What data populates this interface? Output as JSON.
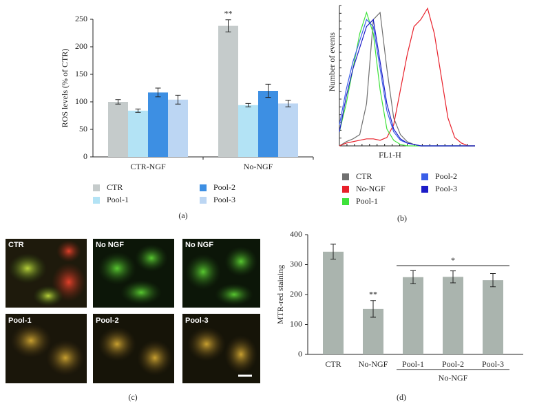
{
  "chart_data": [
    {
      "type": "bar",
      "panel_label": "(a)",
      "ylabel": "ROS levels (% of CTR)",
      "categories": [
        "CTR-NGF",
        "No-NGF"
      ],
      "series": [
        {
          "name": "CTR",
          "color": "#c5cbcb",
          "values": [
            100,
            238
          ],
          "errors": [
            4,
            11
          ]
        },
        {
          "name": "Pool-1",
          "color": "#b3e3f5",
          "values": [
            84,
            94
          ],
          "errors": [
            3,
            3
          ]
        },
        {
          "name": "Pool-2",
          "color": "#3d8fe3",
          "values": [
            117,
            120
          ],
          "errors": [
            8,
            12
          ]
        },
        {
          "name": "Pool-3",
          "color": "#bcd6f3",
          "values": [
            104,
            97
          ],
          "errors": [
            8,
            6
          ]
        }
      ],
      "ylim": [
        0,
        250
      ],
      "yticks": [
        0,
        50,
        100,
        150,
        200,
        250
      ],
      "annotations": [
        "**"
      ]
    },
    {
      "type": "line",
      "panel_label": "(b)",
      "xlabel": "FL1-H",
      "ylabel": "Number of events",
      "x": [
        0,
        1,
        2,
        3,
        4,
        5,
        6,
        7,
        8,
        9,
        10,
        11,
        12,
        13,
        14,
        15,
        16,
        17,
        18,
        19,
        20
      ],
      "series": [
        {
          "name": "CTR",
          "color": "#707070",
          "values": [
            0,
            3,
            5,
            8,
            30,
            90,
            95,
            55,
            20,
            8,
            3,
            1,
            0,
            0,
            0,
            0,
            0,
            0,
            0,
            0,
            0
          ]
        },
        {
          "name": "No-NGF",
          "color": "#e8202a",
          "values": [
            0,
            2,
            3,
            4,
            5,
            5,
            4,
            6,
            15,
            40,
            65,
            85,
            90,
            98,
            80,
            50,
            20,
            6,
            2,
            0,
            0
          ]
        },
        {
          "name": "Pool-1",
          "color": "#3ee23a",
          "values": [
            10,
            30,
            55,
            80,
            95,
            80,
            40,
            12,
            4,
            1,
            0,
            0,
            0,
            0,
            0,
            0,
            0,
            0,
            0,
            0,
            0
          ]
        },
        {
          "name": "Pool-2",
          "color": "#3a5ee8",
          "values": [
            15,
            40,
            60,
            75,
            90,
            85,
            55,
            25,
            10,
            4,
            2,
            1,
            0,
            0,
            0,
            0,
            0,
            0,
            0,
            0,
            0
          ]
        },
        {
          "name": "Pool-3",
          "color": "#1c1cc8",
          "values": [
            10,
            35,
            55,
            70,
            85,
            90,
            60,
            30,
            12,
            5,
            2,
            1,
            0,
            0,
            0,
            0,
            0,
            0,
            0,
            0,
            0
          ]
        }
      ],
      "xlim": [
        0,
        20
      ],
      "ylim": [
        0,
        100
      ]
    },
    {
      "type": "bar",
      "panel_label": "(d)",
      "ylabel": "MTR-red staining",
      "categories": [
        "CTR",
        "No-NGF",
        "Pool-1",
        "Pool-2",
        "Pool-3"
      ],
      "series": [
        {
          "color": "#aab4ae",
          "values": [
            343,
            152,
            258,
            259,
            248
          ],
          "errors": [
            25,
            28,
            22,
            20,
            22
          ]
        }
      ],
      "ylim": [
        0,
        400
      ],
      "yticks": [
        0,
        100,
        200,
        300,
        400
      ],
      "annotations": [
        "**",
        "*"
      ],
      "group_label": "No-NGF"
    }
  ],
  "image_panel": {
    "panel_label": "(c)",
    "labels": [
      "CTR",
      "No NGF",
      "No NGF",
      "Pool-1",
      "Pool-2",
      "Pool-3"
    ]
  }
}
